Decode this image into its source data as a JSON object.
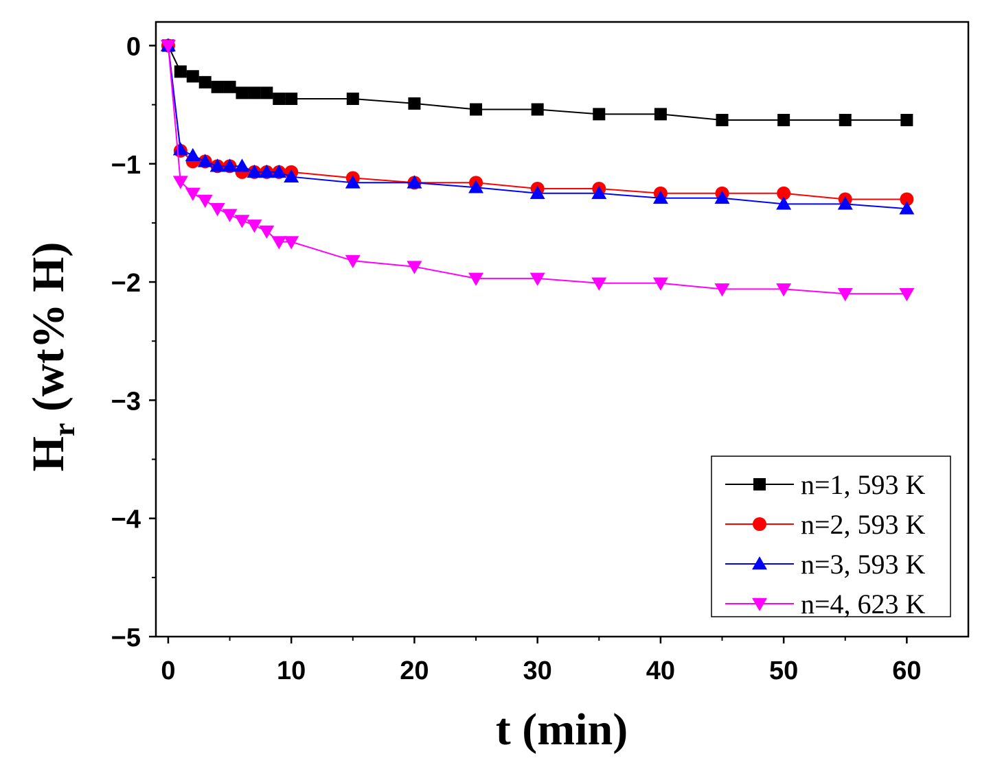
{
  "chart_data": {
    "type": "line",
    "title": "",
    "xlabel": "t (min)",
    "ylabel": {
      "main": "H",
      "sub": "r",
      "rest": " (wt% H)"
    },
    "xlim": [
      -1,
      65
    ],
    "ylim": [
      -5,
      0.2
    ],
    "xticks": [
      0,
      10,
      20,
      30,
      40,
      50,
      60
    ],
    "yticks": [
      0,
      -1,
      -2,
      -3,
      -4,
      -5
    ],
    "xtick_labels": [
      "0",
      "10",
      "20",
      "30",
      "40",
      "50",
      "60"
    ],
    "ytick_labels": [
      "0",
      "−1",
      "−2",
      "−3",
      "−4",
      "−5"
    ],
    "grid": false,
    "legend_position": "bottom-right",
    "x": [
      0,
      1,
      2,
      3,
      4,
      5,
      6,
      7,
      8,
      9,
      10,
      15,
      20,
      25,
      30,
      35,
      40,
      45,
      50,
      55,
      60
    ],
    "series": [
      {
        "name": "n=1, 593 K",
        "color": "#000000",
        "marker": "square",
        "values": [
          0,
          -0.22,
          -0.26,
          -0.31,
          -0.35,
          -0.35,
          -0.4,
          -0.4,
          -0.4,
          -0.45,
          -0.45,
          -0.45,
          -0.49,
          -0.54,
          -0.54,
          -0.58,
          -0.58,
          -0.63,
          -0.63,
          -0.63,
          -0.63
        ]
      },
      {
        "name": "n=2, 593 K",
        "color": "#ff0000",
        "marker": "circle",
        "values": [
          0,
          -0.89,
          -0.98,
          -0.98,
          -1.02,
          -1.02,
          -1.07,
          -1.07,
          -1.07,
          -1.07,
          -1.07,
          -1.12,
          -1.16,
          -1.16,
          -1.21,
          -1.21,
          -1.25,
          -1.25,
          -1.25,
          -1.3,
          -1.3
        ]
      },
      {
        "name": "n=3, 593 K",
        "color": "#0000ff",
        "marker": "triangle-up",
        "values": [
          0,
          -0.88,
          -0.93,
          -0.98,
          -1.02,
          -1.02,
          -1.02,
          -1.07,
          -1.07,
          -1.07,
          -1.11,
          -1.16,
          -1.16,
          -1.2,
          -1.25,
          -1.25,
          -1.29,
          -1.29,
          -1.34,
          -1.34,
          -1.38
        ]
      },
      {
        "name": "n=4, 623 K",
        "color": "#ff00ff",
        "marker": "triangle-down",
        "values": [
          0,
          -1.15,
          -1.25,
          -1.31,
          -1.38,
          -1.43,
          -1.48,
          -1.52,
          -1.57,
          -1.66,
          -1.66,
          -1.82,
          -1.87,
          -1.97,
          -1.97,
          -2.01,
          -2.01,
          -2.06,
          -2.06,
          -2.1,
          -2.1
        ]
      }
    ]
  }
}
